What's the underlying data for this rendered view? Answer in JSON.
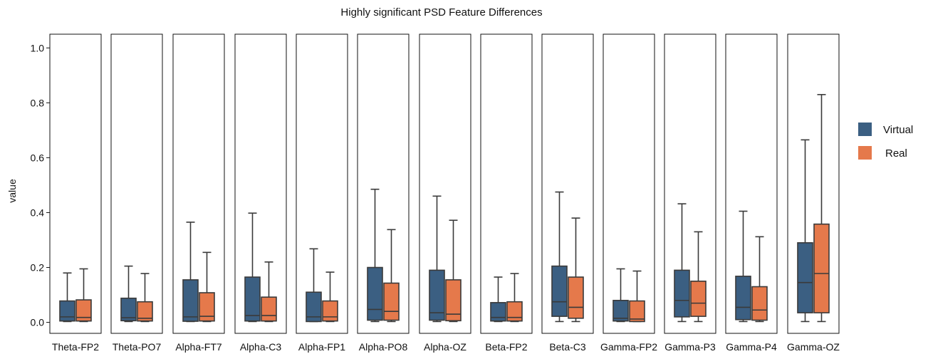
{
  "chart_data": {
    "type": "box",
    "title": "Highly significant PSD Feature Differences",
    "xlabel": "",
    "ylabel": "value",
    "ylim": [
      -0.04,
      1.05
    ],
    "yticks": [
      "0.0",
      "0.2",
      "0.4",
      "0.6",
      "0.8",
      "1.0"
    ],
    "ytick_values": [
      0.0,
      0.2,
      0.4,
      0.6,
      0.8,
      1.0
    ],
    "grid": false,
    "legend_position": "right",
    "categories": [
      "Theta-FP2",
      "Theta-PO7",
      "Alpha-FT7",
      "Alpha-C3",
      "Alpha-FP1",
      "Alpha-PO8",
      "Alpha-OZ",
      "Beta-FP2",
      "Beta-C3",
      "Gamma-FP2",
      "Gamma-P3",
      "Gamma-P4",
      "Gamma-OZ"
    ],
    "series": [
      {
        "name": "Virtual",
        "color": "#3b5f82",
        "boxes": [
          {
            "min": 0.003,
            "q1": 0.005,
            "median": 0.02,
            "q3": 0.078,
            "max": 0.18
          },
          {
            "min": 0.003,
            "q1": 0.006,
            "median": 0.017,
            "q3": 0.088,
            "max": 0.205
          },
          {
            "min": 0.003,
            "q1": 0.004,
            "median": 0.02,
            "q3": 0.155,
            "max": 0.365
          },
          {
            "min": 0.003,
            "q1": 0.005,
            "median": 0.025,
            "q3": 0.165,
            "max": 0.398
          },
          {
            "min": 0.003,
            "q1": 0.003,
            "median": 0.02,
            "q3": 0.11,
            "max": 0.268
          },
          {
            "min": 0.003,
            "q1": 0.008,
            "median": 0.047,
            "q3": 0.2,
            "max": 0.485
          },
          {
            "min": 0.003,
            "q1": 0.008,
            "median": 0.035,
            "q3": 0.19,
            "max": 0.46
          },
          {
            "min": 0.003,
            "q1": 0.005,
            "median": 0.018,
            "q3": 0.072,
            "max": 0.165
          },
          {
            "min": 0.003,
            "q1": 0.022,
            "median": 0.075,
            "q3": 0.205,
            "max": 0.475
          },
          {
            "min": 0.003,
            "q1": 0.005,
            "median": 0.015,
            "q3": 0.08,
            "max": 0.195
          },
          {
            "min": 0.003,
            "q1": 0.02,
            "median": 0.08,
            "q3": 0.19,
            "max": 0.432
          },
          {
            "min": 0.003,
            "q1": 0.01,
            "median": 0.055,
            "q3": 0.168,
            "max": 0.405
          },
          {
            "min": 0.003,
            "q1": 0.035,
            "median": 0.145,
            "q3": 0.29,
            "max": 0.665
          }
        ]
      },
      {
        "name": "Real",
        "color": "#e5794b",
        "boxes": [
          {
            "min": 0.003,
            "q1": 0.005,
            "median": 0.018,
            "q3": 0.082,
            "max": 0.195
          },
          {
            "min": 0.003,
            "q1": 0.005,
            "median": 0.015,
            "q3": 0.075,
            "max": 0.178
          },
          {
            "min": 0.003,
            "q1": 0.005,
            "median": 0.022,
            "q3": 0.108,
            "max": 0.255
          },
          {
            "min": 0.003,
            "q1": 0.005,
            "median": 0.025,
            "q3": 0.092,
            "max": 0.22
          },
          {
            "min": 0.003,
            "q1": 0.005,
            "median": 0.02,
            "q3": 0.078,
            "max": 0.183
          },
          {
            "min": 0.003,
            "q1": 0.008,
            "median": 0.04,
            "q3": 0.143,
            "max": 0.338
          },
          {
            "min": 0.003,
            "q1": 0.006,
            "median": 0.03,
            "q3": 0.155,
            "max": 0.372
          },
          {
            "min": 0.003,
            "q1": 0.005,
            "median": 0.018,
            "q3": 0.075,
            "max": 0.178
          },
          {
            "min": 0.003,
            "q1": 0.015,
            "median": 0.055,
            "q3": 0.165,
            "max": 0.38
          },
          {
            "min": 0.003,
            "q1": 0.003,
            "median": 0.012,
            "q3": 0.078,
            "max": 0.187
          },
          {
            "min": 0.003,
            "q1": 0.022,
            "median": 0.07,
            "q3": 0.15,
            "max": 0.33
          },
          {
            "min": 0.003,
            "q1": 0.008,
            "median": 0.045,
            "q3": 0.13,
            "max": 0.312
          },
          {
            "min": 0.003,
            "q1": 0.035,
            "median": 0.178,
            "q3": 0.358,
            "max": 0.83
          }
        ]
      }
    ]
  }
}
